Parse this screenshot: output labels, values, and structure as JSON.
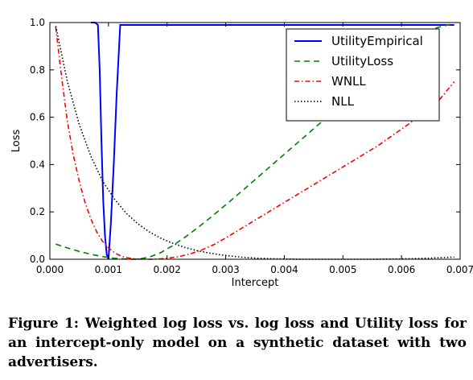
{
  "chart_data": {
    "type": "line",
    "title": "",
    "xlabel": "Intercept",
    "ylabel": "Loss",
    "xlim": [
      0.0,
      0.007
    ],
    "ylim": [
      0.0,
      1.0
    ],
    "xticks": [
      "0.000",
      "0.001",
      "0.002",
      "0.003",
      "0.004",
      "0.005",
      "0.006",
      "0.007"
    ],
    "yticks": [
      "0.0",
      "0.2",
      "0.4",
      "0.6",
      "0.8",
      "1.0"
    ],
    "grid": false,
    "legend_position": "top-right",
    "series": [
      {
        "name": "UtilityEmpirical",
        "color": "#0000ff",
        "style": "solid",
        "x": [
          0.0007,
          0.00077,
          0.00082,
          0.00085,
          0.00088,
          0.00091,
          0.00094,
          0.00097,
          0.001,
          0.00104,
          0.00109,
          0.00114,
          0.0012,
          0.00123,
          0.002,
          0.003,
          0.004,
          0.005,
          0.006,
          0.0069
        ],
        "y": [
          1.0,
          1.0,
          0.99,
          0.8,
          0.5,
          0.25,
          0.1,
          0.02,
          0.0,
          0.15,
          0.4,
          0.7,
          0.99,
          0.99,
          0.99,
          0.99,
          0.99,
          0.99,
          0.99,
          0.99
        ]
      },
      {
        "name": "UtilityLoss",
        "color": "#008000",
        "style": "dashed",
        "x": [
          0.0001,
          0.0003,
          0.0005,
          0.0007,
          0.0009,
          0.0011,
          0.0013,
          0.0015,
          0.0017,
          0.0019,
          0.0021,
          0.0023,
          0.0025,
          0.0027,
          0.0029,
          0.0031,
          0.0033,
          0.0035,
          0.0037,
          0.0039,
          0.0041,
          0.0043,
          0.0045,
          0.0047,
          0.0049,
          0.0051,
          0.0053,
          0.0055,
          0.0057,
          0.0059,
          0.0061,
          0.0063,
          0.0065,
          0.0067,
          0.0069
        ],
        "y": [
          0.064,
          0.048,
          0.033,
          0.021,
          0.011,
          0.004,
          0.0005,
          0.0,
          0.009,
          0.029,
          0.058,
          0.092,
          0.129,
          0.168,
          0.209,
          0.251,
          0.293,
          0.336,
          0.379,
          0.422,
          0.465,
          0.508,
          0.551,
          0.594,
          0.637,
          0.68,
          0.723,
          0.766,
          0.809,
          0.852,
          0.895,
          0.938,
          0.97,
          0.985,
          0.995
        ]
      },
      {
        "name": "WNLL",
        "color": "#ff0000",
        "style": "dashdot",
        "x": [
          0.0001,
          0.0002,
          0.0003,
          0.0004,
          0.0005,
          0.0006,
          0.0007,
          0.0008,
          0.0009,
          0.001,
          0.0011,
          0.0012,
          0.0013,
          0.0014,
          0.0015,
          0.0016,
          0.0017,
          0.0018,
          0.0019,
          0.002,
          0.0022,
          0.0024,
          0.0026,
          0.0028,
          0.003,
          0.0032,
          0.0034,
          0.0036,
          0.0038,
          0.004,
          0.0042,
          0.0044,
          0.0046,
          0.0048,
          0.005,
          0.0052,
          0.0054,
          0.0056,
          0.0058,
          0.006,
          0.0062,
          0.0064,
          0.0066,
          0.0068,
          0.0069
        ],
        "y": [
          0.98,
          0.77,
          0.58,
          0.44,
          0.33,
          0.24,
          0.17,
          0.115,
          0.075,
          0.048,
          0.028,
          0.015,
          0.007,
          0.003,
          0.001,
          0.0,
          0.0,
          0.001,
          0.002,
          0.004,
          0.011,
          0.023,
          0.04,
          0.062,
          0.09,
          0.12,
          0.15,
          0.18,
          0.21,
          0.24,
          0.27,
          0.3,
          0.33,
          0.36,
          0.39,
          0.42,
          0.45,
          0.48,
          0.515,
          0.55,
          0.585,
          0.62,
          0.66,
          0.72,
          0.75
        ]
      },
      {
        "name": "NLL",
        "color": "#000000",
        "style": "dotted",
        "x": [
          0.0001,
          0.0003,
          0.0005,
          0.0007,
          0.0009,
          0.0011,
          0.0013,
          0.0015,
          0.0017,
          0.0019,
          0.0021,
          0.0023,
          0.0025,
          0.0027,
          0.0029,
          0.0031,
          0.0033,
          0.0035,
          0.0037,
          0.0039,
          0.0041,
          0.0043,
          0.0045,
          0.0047,
          0.0049,
          0.0051,
          0.0053,
          0.0055,
          0.0057,
          0.0059,
          0.0061,
          0.0063,
          0.0065,
          0.0067,
          0.0069
        ],
        "y": [
          0.985,
          0.75,
          0.57,
          0.435,
          0.33,
          0.255,
          0.195,
          0.15,
          0.115,
          0.088,
          0.067,
          0.05,
          0.037,
          0.027,
          0.019,
          0.013,
          0.008,
          0.005,
          0.003,
          0.0015,
          0.0005,
          0.0,
          0.0,
          0.0,
          0.0,
          0.0,
          0.0,
          0.0,
          0.0005,
          0.001,
          0.002,
          0.003,
          0.005,
          0.007,
          0.009
        ]
      }
    ]
  },
  "caption": "Figure 1: Weighted log loss vs. log loss and Utility loss for an intercept-only model on a synthetic dataset with two advertisers."
}
